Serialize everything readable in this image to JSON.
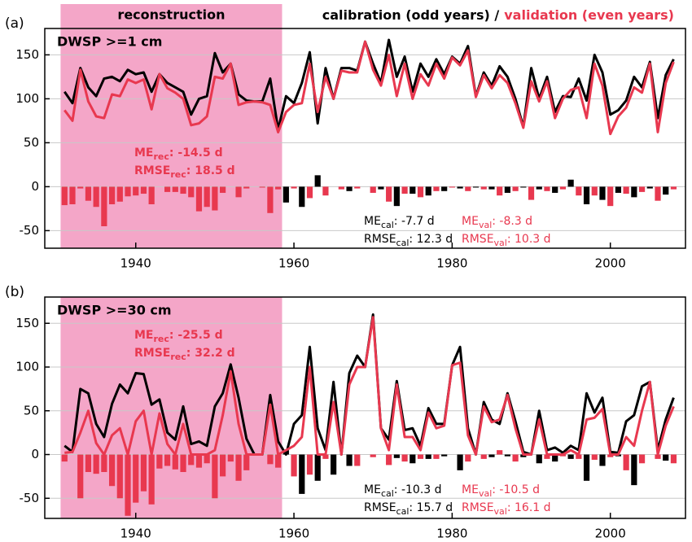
{
  "chart_data": [
    {
      "type": "line",
      "panel_label": "(a)",
      "label": "DWSP >=1 cm",
      "span_label": "reconstruction",
      "title_parts": [
        {
          "text": "calibration (odd years) /",
          "color": "#000000"
        },
        {
          "text": "validation (even years)",
          "color": "#e8384f"
        }
      ],
      "x": [
        1931,
        1932,
        1933,
        1934,
        1935,
        1936,
        1937,
        1938,
        1939,
        1940,
        1941,
        1942,
        1943,
        1944,
        1945,
        1946,
        1947,
        1948,
        1949,
        1950,
        1951,
        1952,
        1953,
        1954,
        1955,
        1956,
        1957,
        1958,
        1959,
        1960,
        1961,
        1962,
        1963,
        1964,
        1965,
        1966,
        1967,
        1968,
        1969,
        1970,
        1971,
        1972,
        1973,
        1974,
        1975,
        1976,
        1977,
        1978,
        1979,
        1980,
        1981,
        1982,
        1983,
        1984,
        1985,
        1986,
        1987,
        1988,
        1989,
        1990,
        1991,
        1992,
        1993,
        1994,
        1995,
        1996,
        1997,
        1998,
        1999,
        2000,
        2001,
        2002,
        2003,
        2004,
        2005,
        2006,
        2007,
        2008
      ],
      "xlim": [
        1928.5,
        2009.5
      ],
      "xticks": [
        1940,
        1960,
        1980,
        2000
      ],
      "ylim": [
        -70,
        180
      ],
      "yticks": [
        -50,
        0,
        50,
        100,
        150
      ],
      "grid": true,
      "span": [
        1930.5,
        1958.5
      ],
      "span_color": "#f4a6c8",
      "series": [
        {
          "type": "bar",
          "color": "#e8384f",
          "x": [
            1931,
            1932,
            1933,
            1934,
            1935,
            1936,
            1937,
            1938,
            1939,
            1940,
            1941,
            1942,
            1943,
            1944,
            1945,
            1946,
            1947,
            1948,
            1949,
            1950,
            1951,
            1952,
            1953,
            1954,
            1955,
            1956,
            1957,
            1958,
            1960,
            1962,
            1964,
            1966,
            1968,
            1970,
            1972,
            1974,
            1976,
            1978,
            1980,
            1982,
            1984,
            1986,
            1988,
            1990,
            1992,
            1994,
            1996,
            1998,
            2000,
            2002,
            2004,
            2006,
            2008
          ],
          "values": [
            -21,
            -20,
            -2,
            -16,
            -23,
            -45,
            -20,
            -17,
            -11,
            -10,
            -8,
            -20,
            0,
            -6,
            -6,
            -8,
            -12,
            -28,
            -23,
            -27,
            -7,
            0,
            -12,
            -2,
            0,
            -1,
            -30,
            -3,
            -2,
            -13,
            -10,
            -3,
            -2,
            -7,
            -17,
            -8,
            -12,
            -5,
            -1,
            -5,
            -3,
            -10,
            -5,
            -15,
            -5,
            -3,
            -10,
            -10,
            -22,
            -8,
            -6,
            -16,
            -3
          ]
        },
        {
          "type": "bar",
          "color": "#000000",
          "x": [
            1959,
            1961,
            1963,
            1965,
            1967,
            1969,
            1971,
            1973,
            1975,
            1977,
            1979,
            1981,
            1983,
            1985,
            1987,
            1989,
            1991,
            1993,
            1995,
            1997,
            1999,
            2001,
            2003,
            2005,
            2007
          ],
          "values": [
            -18,
            -23,
            13,
            0,
            -5,
            0,
            -3,
            -22,
            -8,
            -10,
            -5,
            -2,
            -1,
            -3,
            -7,
            -1,
            -3,
            -7,
            8,
            -20,
            -15,
            -7,
            -12,
            -2,
            -9
          ]
        },
        {
          "type": "line",
          "color": "#000000",
          "values": [
            108,
            95,
            135,
            113,
            103,
            123,
            125,
            120,
            133,
            128,
            130,
            108,
            128,
            118,
            113,
            108,
            82,
            100,
            103,
            152,
            130,
            140,
            105,
            98,
            97,
            97,
            123,
            65,
            103,
            95,
            118,
            153,
            72,
            135,
            100,
            135,
            135,
            132,
            165,
            140,
            118,
            167,
            125,
            148,
            108,
            140,
            125,
            145,
            128,
            148,
            140,
            160,
            103,
            130,
            115,
            137,
            125,
            100,
            68,
            135,
            100,
            125,
            85,
            103,
            102,
            123,
            98,
            150,
            130,
            82,
            87,
            98,
            125,
            113,
            142,
            78,
            127,
            145
          ]
        },
        {
          "type": "line",
          "color": "#e8384f",
          "values": [
            87,
            75,
            133,
            97,
            80,
            78,
            105,
            103,
            122,
            118,
            122,
            88,
            128,
            112,
            107,
            100,
            70,
            72,
            80,
            125,
            123,
            140,
            93,
            96,
            97,
            96,
            93,
            62,
            85,
            93,
            95,
            140,
            85,
            125,
            100,
            132,
            130,
            130,
            165,
            133,
            115,
            150,
            103,
            140,
            100,
            128,
            115,
            140,
            123,
            147,
            138,
            155,
            102,
            127,
            112,
            127,
            118,
            95,
            67,
            120,
            97,
            120,
            78,
            100,
            110,
            113,
            78,
            140,
            115,
            60,
            80,
            90,
            113,
            107,
            140,
            62,
            118,
            142
          ]
        }
      ],
      "stats": [
        {
          "color": "#e8384f",
          "lines": [
            {
              "name": "ME",
              "sub": "rec",
              "text": ": -14.5 d"
            },
            {
              "name": "RMSE",
              "sub": "rec",
              "text": ": 18.5 d"
            }
          ]
        },
        {
          "color": "#000000",
          "lines": [
            {
              "name": "ME",
              "sub": "cal",
              "text": ": -7.7 d"
            },
            {
              "name": "RMSE",
              "sub": "cal",
              "text": ": 12.3 d"
            }
          ]
        },
        {
          "color": "#e8384f",
          "lines": [
            {
              "name": "ME",
              "sub": "val",
              "text": ": -8.3 d"
            },
            {
              "name": "RMSE",
              "sub": "val",
              "text": ": 10.3 d"
            }
          ]
        }
      ]
    },
    {
      "type": "line",
      "panel_label": "(b)",
      "label": "DWSP >=30 cm",
      "x": [
        1931,
        1932,
        1933,
        1934,
        1935,
        1936,
        1937,
        1938,
        1939,
        1940,
        1941,
        1942,
        1943,
        1944,
        1945,
        1946,
        1947,
        1948,
        1949,
        1950,
        1951,
        1952,
        1953,
        1954,
        1955,
        1956,
        1957,
        1958,
        1959,
        1960,
        1961,
        1962,
        1963,
        1964,
        1965,
        1966,
        1967,
        1968,
        1969,
        1970,
        1971,
        1972,
        1973,
        1974,
        1975,
        1976,
        1977,
        1978,
        1979,
        1980,
        1981,
        1982,
        1983,
        1984,
        1985,
        1986,
        1987,
        1988,
        1989,
        1990,
        1991,
        1992,
        1993,
        1994,
        1995,
        1996,
        1997,
        1998,
        1999,
        2000,
        2001,
        2002,
        2003,
        2004,
        2005,
        2006,
        2007,
        2008
      ],
      "xlim": [
        1928.5,
        2009.5
      ],
      "xticks": [
        1940,
        1960,
        1980,
        2000
      ],
      "ylim": [
        -73,
        180
      ],
      "yticks": [
        -50,
        0,
        50,
        100,
        150
      ],
      "grid": true,
      "span": [
        1930.5,
        1958.5
      ],
      "span_color": "#f4a6c8",
      "series": [
        {
          "type": "bar",
          "color": "#e8384f",
          "x": [
            1931,
            1932,
            1933,
            1934,
            1935,
            1936,
            1937,
            1938,
            1939,
            1940,
            1941,
            1942,
            1943,
            1944,
            1945,
            1946,
            1947,
            1948,
            1949,
            1950,
            1951,
            1952,
            1953,
            1954,
            1955,
            1956,
            1957,
            1958,
            1960,
            1962,
            1964,
            1966,
            1968,
            1970,
            1972,
            1974,
            1976,
            1978,
            1980,
            1982,
            1984,
            1986,
            1988,
            1990,
            1992,
            1994,
            1996,
            1998,
            2000,
            2002,
            2004,
            2006,
            2008
          ],
          "values": [
            -8,
            0,
            -50,
            -20,
            -22,
            -20,
            -36,
            -50,
            -70,
            -55,
            -42,
            -57,
            -16,
            -13,
            -17,
            -20,
            -12,
            -15,
            -10,
            -50,
            -25,
            -8,
            -30,
            -18,
            0,
            0,
            -11,
            -15,
            -25,
            -23,
            -5,
            0,
            -13,
            -3,
            -12,
            -8,
            -5,
            -5,
            0,
            -8,
            -5,
            5,
            -8,
            0,
            -5,
            -2,
            -5,
            -6,
            -3,
            -18,
            -10,
            -5,
            -10
          ]
        },
        {
          "type": "bar",
          "color": "#000000",
          "x": [
            1959,
            1961,
            1963,
            1965,
            1967,
            1969,
            1971,
            1973,
            1975,
            1977,
            1979,
            1981,
            1983,
            1985,
            1987,
            1989,
            1991,
            1993,
            1995,
            1997,
            1999,
            2001,
            2003,
            2005,
            2007
          ],
          "values": [
            5,
            -45,
            -30,
            -23,
            -13,
            0,
            0,
            -4,
            -10,
            -5,
            -2,
            -18,
            0,
            -3,
            -2,
            -3,
            -10,
            -8,
            -5,
            -30,
            -13,
            -2,
            -35,
            0,
            -7
          ]
        },
        {
          "type": "line",
          "color": "#000000",
          "values": [
            10,
            3,
            75,
            70,
            35,
            20,
            58,
            80,
            70,
            93,
            92,
            57,
            63,
            25,
            17,
            55,
            12,
            15,
            10,
            55,
            70,
            103,
            65,
            18,
            0,
            0,
            68,
            15,
            0,
            35,
            45,
            123,
            30,
            5,
            83,
            0,
            93,
            113,
            100,
            160,
            30,
            17,
            84,
            28,
            30,
            10,
            53,
            35,
            35,
            102,
            123,
            30,
            0,
            60,
            40,
            35,
            70,
            38,
            3,
            0,
            50,
            5,
            8,
            2,
            10,
            5,
            70,
            48,
            65,
            3,
            2,
            38,
            45,
            78,
            83,
            5,
            40,
            65
          ]
        },
        {
          "type": "line",
          "color": "#e8384f",
          "values": [
            2,
            3,
            25,
            50,
            13,
            0,
            22,
            30,
            0,
            38,
            50,
            0,
            47,
            12,
            0,
            35,
            0,
            0,
            0,
            5,
            45,
            95,
            35,
            0,
            0,
            0,
            57,
            0,
            5,
            10,
            20,
            100,
            0,
            0,
            60,
            0,
            80,
            100,
            100,
            157,
            30,
            5,
            80,
            20,
            20,
            5,
            48,
            30,
            33,
            102,
            105,
            22,
            0,
            55,
            37,
            40,
            68,
            30,
            0,
            0,
            40,
            0,
            0,
            0,
            5,
            0,
            40,
            42,
            52,
            0,
            0,
            20,
            10,
            50,
            83,
            0,
            33,
            55
          ]
        }
      ],
      "stats": [
        {
          "color": "#e8384f",
          "lines": [
            {
              "name": "ME",
              "sub": "rec",
              "text": ": -25.5 d"
            },
            {
              "name": "RMSE",
              "sub": "rec",
              "text": ": 32.2 d"
            }
          ]
        },
        {
          "color": "#000000",
          "lines": [
            {
              "name": "ME",
              "sub": "cal",
              "text": ": -10.3 d"
            },
            {
              "name": "RMSE",
              "sub": "cal",
              "text": ": 15.7 d"
            }
          ]
        },
        {
          "color": "#e8384f",
          "lines": [
            {
              "name": "ME",
              "sub": "val",
              "text": ": -10.5 d"
            },
            {
              "name": "RMSE",
              "sub": "val",
              "text": ": 16.1 d"
            }
          ]
        }
      ]
    }
  ]
}
